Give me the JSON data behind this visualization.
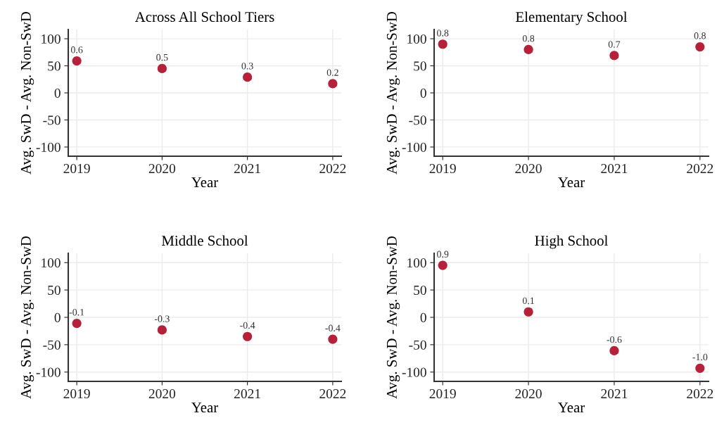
{
  "chart_data": [
    {
      "type": "scatter",
      "title": "Across All School Tiers",
      "xlabel": "Year",
      "ylabel": "Avg. SwD - Avg. Non-SwD",
      "categories": [
        "2019",
        "2020",
        "2021",
        "2022"
      ],
      "series": [
        {
          "color": "#b5213a",
          "values": [
            59,
            45,
            29,
            17
          ]
        }
      ],
      "annotations": [
        {
          "text": "0.6",
          "x": "2019",
          "y": 59
        },
        {
          "text": "0.5",
          "x": "2020",
          "y": 45
        },
        {
          "text": "0.3",
          "x": "2021",
          "y": 29
        },
        {
          "text": "0.2",
          "x": "2022",
          "y": 17
        }
      ],
      "ylim": [
        -117,
        117
      ],
      "yticks": [
        -100,
        -50,
        0,
        50,
        100
      ],
      "grid": true,
      "marker": "circle"
    },
    {
      "type": "scatter",
      "title": "Elementary School",
      "xlabel": "Year",
      "ylabel": "Avg. SwD - Avg. Non-SwD",
      "categories": [
        "2019",
        "2020",
        "2021",
        "2022"
      ],
      "series": [
        {
          "color": "#b5213a",
          "values": [
            90,
            80,
            69,
            85
          ]
        }
      ],
      "annotations": [
        {
          "text": "0.8",
          "x": "2019",
          "y": 90
        },
        {
          "text": "0.8",
          "x": "2020",
          "y": 80
        },
        {
          "text": "0.7",
          "x": "2021",
          "y": 69
        },
        {
          "text": "0.8",
          "x": "2022",
          "y": 85
        }
      ],
      "ylim": [
        -117,
        117
      ],
      "yticks": [
        -100,
        -50,
        0,
        50,
        100
      ],
      "grid": true,
      "marker": "circle"
    },
    {
      "type": "scatter",
      "title": "Middle School",
      "xlabel": "Year",
      "ylabel": "Avg. SwD - Avg. Non-SwD",
      "categories": [
        "2019",
        "2020",
        "2021",
        "2022"
      ],
      "series": [
        {
          "color": "#b5213a",
          "values": [
            -11,
            -23,
            -35,
            -40
          ]
        }
      ],
      "annotations": [
        {
          "text": "-0.1",
          "x": "2019",
          "y": -11
        },
        {
          "text": "-0.3",
          "x": "2020",
          "y": -23
        },
        {
          "text": "-0.4",
          "x": "2021",
          "y": -35
        },
        {
          "text": "-0.4",
          "x": "2022",
          "y": -40
        }
      ],
      "ylim": [
        -117,
        117
      ],
      "yticks": [
        -100,
        -50,
        0,
        50,
        100
      ],
      "grid": true,
      "marker": "circle"
    },
    {
      "type": "scatter",
      "title": "High School",
      "xlabel": "Year",
      "ylabel": "Avg. SwD - Avg. Non-SwD",
      "categories": [
        "2019",
        "2020",
        "2021",
        "2022"
      ],
      "series": [
        {
          "color": "#b5213a",
          "values": [
            95,
            10,
            -61,
            -93
          ]
        }
      ],
      "annotations": [
        {
          "text": "0.9",
          "x": "2019",
          "y": 95
        },
        {
          "text": "0.1",
          "x": "2020",
          "y": 10
        },
        {
          "text": "-0.6",
          "x": "2021",
          "y": -61
        },
        {
          "text": "-1.0",
          "x": "2022",
          "y": -93
        }
      ],
      "ylim": [
        -117,
        117
      ],
      "yticks": [
        -100,
        -50,
        0,
        50,
        100
      ],
      "grid": true,
      "marker": "circle"
    }
  ]
}
